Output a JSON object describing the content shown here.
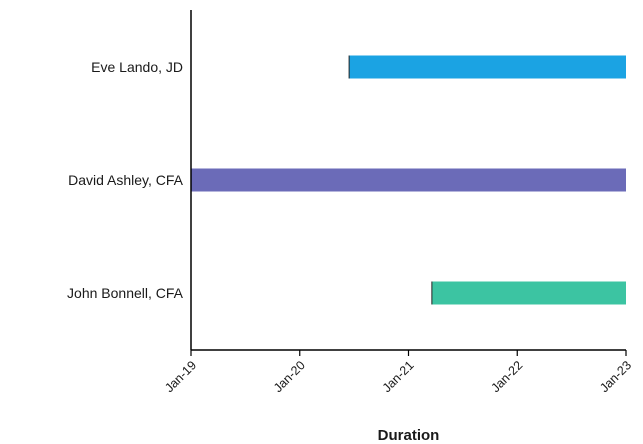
{
  "chart_data": {
    "type": "bar",
    "orientation": "horizontal",
    "title": "",
    "xlabel": "Duration",
    "ylabel": "",
    "x_ticks": [
      "Jan-19",
      "Jan-20",
      "Jan-21",
      "Jan-22",
      "Jan-23"
    ],
    "xlim": [
      "2019-01-01",
      "2023-01-01"
    ],
    "grid": false,
    "legend": "none",
    "tasks": [
      {
        "name": "Eve Lando, JD",
        "start": "2020-06-15",
        "end": "2023-01-01",
        "color": "#1ba3e3"
      },
      {
        "name": "David Ashley, CFA",
        "start": "2019-01-01",
        "end": "2023-01-01",
        "color": "#6b6bb8"
      },
      {
        "name": "John Bonnell, CFA",
        "start": "2021-03-20",
        "end": "2023-01-01",
        "color": "#3cc4a2"
      }
    ]
  }
}
